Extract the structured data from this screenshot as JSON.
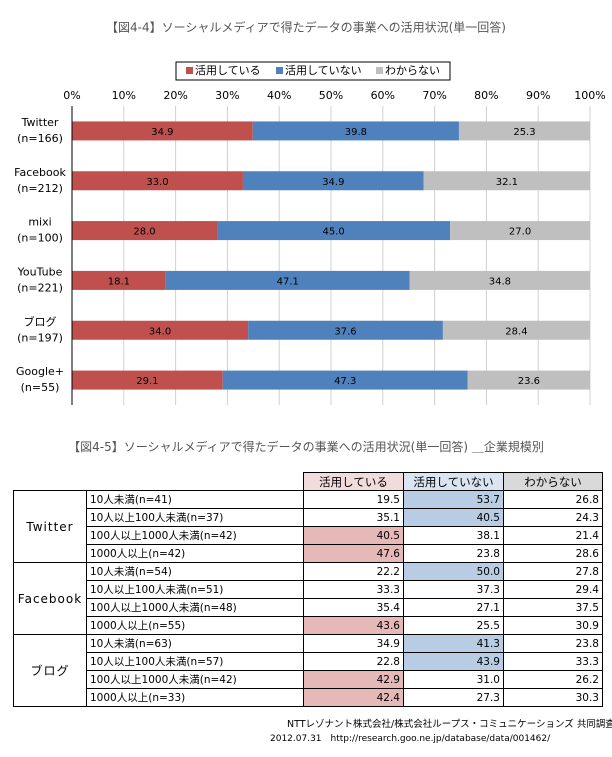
{
  "chart_data": {
    "type": "stacked-bar-horizontal",
    "title": "【図4-4】ソーシャルメディアで得たデータの事業への活用状況(単一回答)",
    "categories": [
      [
        "Twitter",
        "(n=166)"
      ],
      [
        "Facebook",
        "(n=212)"
      ],
      [
        "mixi",
        "(n=100)"
      ],
      [
        "YouTube",
        "(n=221)"
      ],
      [
        "ブログ",
        "(n=197)"
      ],
      [
        "Google+",
        "(n=55)"
      ]
    ],
    "series": [
      {
        "name": "活用している",
        "color": "#c0504d",
        "values": [
          34.9,
          33.0,
          28.0,
          18.1,
          34.0,
          29.1
        ],
        "value_labels": [
          "34.9",
          "33.0",
          "28.0",
          "18.1",
          "34.0",
          "29.1"
        ]
      },
      {
        "name": "活用していない",
        "color": "#4f81bd",
        "values": [
          39.8,
          34.9,
          45.0,
          47.1,
          37.6,
          47.3
        ],
        "value_labels": [
          "39.8",
          "34.9",
          "45.0",
          "47.1",
          "37.6",
          "47.3"
        ]
      },
      {
        "name": "わからない",
        "color": "#bfbfbf",
        "values": [
          25.3,
          32.1,
          27.0,
          34.8,
          28.4,
          23.6
        ],
        "value_labels": [
          "25.3",
          "32.1",
          "27.0",
          "34.8",
          "28.4",
          "23.6"
        ]
      }
    ],
    "xlim": [
      0,
      100
    ],
    "xticks": [
      {
        "value": 0,
        "label": "0%"
      },
      {
        "value": 10,
        "label": "10%"
      },
      {
        "value": 20,
        "label": "20%"
      },
      {
        "value": 30,
        "label": "30%"
      },
      {
        "value": 40,
        "label": "40%"
      },
      {
        "value": 50,
        "label": "50%"
      },
      {
        "value": 60,
        "label": "60%"
      },
      {
        "value": 70,
        "label": "70%"
      },
      {
        "value": 80,
        "label": "80%"
      },
      {
        "value": 90,
        "label": "90%"
      },
      {
        "value": 100,
        "label": "100%"
      }
    ],
    "grid": true,
    "legend": "top"
  },
  "table": {
    "title": "【図4-5】ソーシャルメディアで得たデータの事業への活用状況(単一回答) ＿企業規模別",
    "columns": [
      "活用している",
      "活用していない",
      "わからない"
    ],
    "groups": [
      {
        "name": "Twitter",
        "rows": [
          {
            "label": "10人未満(n=41)",
            "values": [
              "19.5",
              "53.7",
              "26.8"
            ],
            "fills": [
              null,
              "#b8cce4",
              null
            ]
          },
          {
            "label": "10人以上100人未満(n=37)",
            "values": [
              "35.1",
              "40.5",
              "24.3"
            ],
            "fills": [
              null,
              "#b8cce4",
              null
            ]
          },
          {
            "label": "100人以上1000人未満(n=42)",
            "values": [
              "40.5",
              "38.1",
              "21.4"
            ],
            "fills": [
              "#e6b8b7",
              null,
              null
            ]
          },
          {
            "label": "1000人以上(n=42)",
            "values": [
              "47.6",
              "23.8",
              "28.6"
            ],
            "fills": [
              "#e6b8b7",
              null,
              null
            ]
          }
        ]
      },
      {
        "name": "Facebook",
        "rows": [
          {
            "label": "10人未満(n=54)",
            "values": [
              "22.2",
              "50.0",
              "27.8"
            ],
            "fills": [
              null,
              "#b8cce4",
              null
            ]
          },
          {
            "label": "10人以上100人未満(n=51)",
            "values": [
              "33.3",
              "37.3",
              "29.4"
            ],
            "fills": [
              null,
              null,
              null
            ]
          },
          {
            "label": "100人以上1000人未満(n=48)",
            "values": [
              "35.4",
              "27.1",
              "37.5"
            ],
            "fills": [
              null,
              null,
              null
            ]
          },
          {
            "label": "1000人以上(n=55)",
            "values": [
              "43.6",
              "25.5",
              "30.9"
            ],
            "fills": [
              "#e6b8b7",
              null,
              null
            ]
          }
        ]
      },
      {
        "name": "ブログ",
        "rows": [
          {
            "label": "10人未満(n=63)",
            "values": [
              "34.9",
              "41.3",
              "23.8"
            ],
            "fills": [
              null,
              "#b8cce4",
              null
            ]
          },
          {
            "label": "10人以上100人未満(n=57)",
            "values": [
              "22.8",
              "43.9",
              "33.3"
            ],
            "fills": [
              null,
              "#b8cce4",
              null
            ]
          },
          {
            "label": "100人以上1000人未満(n=42)",
            "values": [
              "42.9",
              "31.0",
              "26.2"
            ],
            "fills": [
              "#e6b8b7",
              null,
              null
            ]
          },
          {
            "label": "1000人以上(n=33)",
            "values": [
              "42.4",
              "27.3",
              "30.3"
            ],
            "fills": [
              "#e6b8b7",
              null,
              null
            ]
          }
        ]
      }
    ],
    "header_fills": [
      "#f2dcdb",
      "#dbe5f1",
      "#d9d9d9"
    ]
  },
  "footer": {
    "line1": "NTTレゾナント株式会社/株式会社ループス・コミュニケーションズ 共同調査",
    "line2": "2012.07.31　http://research.goo.ne.jp/database/data/001462/"
  }
}
